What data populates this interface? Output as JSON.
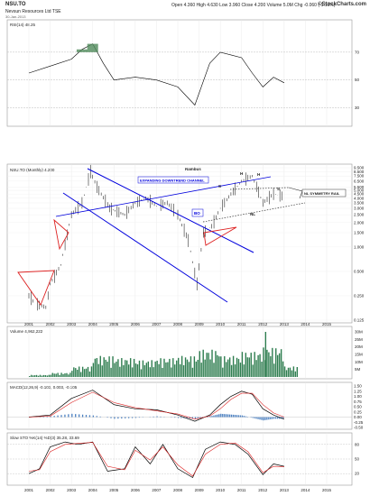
{
  "header": {
    "title": "NSU.TO",
    "company": "Nevsun Resources Ltd",
    "exchange": "TSE",
    "quote": "Open 4.360  High 4.630  Low 3.960  Close 4.200  Volume 5.0M  Chg -0.060 (-1.16%)",
    "date": "30-Jan-2013",
    "logo": "©StockCharts.com"
  },
  "rsi": {
    "label": "RSI(14) 48.25",
    "levels": [
      "70",
      "50",
      "30"
    ]
  },
  "price": {
    "label": "NSU.TO (Monthly) 4.200",
    "title": "Rambus",
    "annotations": {
      "channel": "EXPANDING DOWNTREND CHANNEL",
      "bo": "BO",
      "nl_rail": "NL SYMMETRY RAIL",
      "nl": "NL",
      "h1": "H",
      "h2": "H",
      "s1": "S",
      "s2": "S"
    },
    "y_ticks": [
      "9.500",
      "8.500",
      "7.500",
      "6.500",
      "5.500",
      "5.000",
      "4.500",
      "4.000",
      "3.500",
      "3.000",
      "2.500",
      "2.000",
      "1.500",
      "1.000",
      "0.500",
      "0.250",
      "0.125"
    ]
  },
  "volume": {
    "label": "Volume 4,962,222",
    "y_ticks": [
      "30M",
      "25M",
      "20M",
      "15M",
      "10M",
      "5M"
    ]
  },
  "macd": {
    "label": "MACD(12,26,9) -0.103, 0.003, -0.105",
    "y_ticks": [
      "1.50",
      "1.25",
      "1.00",
      "0.75",
      "0.50",
      "0.25",
      "0.00",
      "-0.25",
      "-0.50"
    ]
  },
  "sto": {
    "label": "Slow STO %K(14) %D(3) 35.28, 33.69",
    "y_ticks": [
      "80",
      "50",
      "20"
    ]
  },
  "x_axis": [
    "2001",
    "2002",
    "2003",
    "2004",
    "2005",
    "2006",
    "2007",
    "2008",
    "2009",
    "2010",
    "2011",
    "2012",
    "2013",
    "2014",
    "2015"
  ],
  "chart_data": [
    {
      "type": "line",
      "title": "RSI(14)",
      "x": [
        2001,
        2002,
        2003,
        2003.5,
        2004,
        2004.5,
        2005,
        2006,
        2007,
        2008,
        2008.8,
        2009.5,
        2010,
        2010.5,
        2011,
        2011.5,
        2012,
        2012.5,
        2013
      ],
      "y": [
        55,
        60,
        65,
        72,
        76,
        62,
        50,
        52,
        50,
        45,
        32,
        62,
        70,
        68,
        66,
        55,
        45,
        52,
        48
      ],
      "ylim": [
        20,
        90
      ]
    },
    {
      "type": "line",
      "title": "NSU.TO (Monthly)",
      "x": [
        2001,
        2001.3,
        2001.8,
        2002,
        2002.5,
        2003,
        2003.5,
        2003.9,
        2004.2,
        2004.8,
        2005.5,
        2006,
        2006.5,
        2007,
        2007.5,
        2008,
        2008.5,
        2008.9,
        2009.2,
        2009.6,
        2010,
        2010.5,
        2011,
        2011.5,
        2012,
        2012.5,
        2013
      ],
      "y": [
        0.25,
        0.2,
        0.18,
        0.35,
        0.6,
        2.5,
        3.5,
        8.5,
        5.5,
        3.0,
        2.5,
        3.5,
        4.0,
        3.2,
        3.5,
        2.5,
        1.2,
        0.35,
        1.5,
        1.8,
        3.0,
        4.5,
        6.5,
        7.5,
        3.5,
        4.5,
        4.2
      ],
      "scale": "log",
      "ylim": [
        0.125,
        9.5
      ]
    },
    {
      "type": "bar",
      "title": "Volume",
      "x": [
        2001,
        2002,
        2003,
        2004,
        2005,
        2006,
        2007,
        2008,
        2009,
        2010,
        2011,
        2012,
        2013
      ],
      "values": [
        1,
        2,
        5,
        10,
        9,
        8,
        9,
        10,
        13,
        10,
        12,
        14,
        5
      ],
      "ylabel": "Millions",
      "ylim": [
        0,
        30
      ]
    },
    {
      "type": "line",
      "title": "MACD(12,26,9)",
      "series": [
        {
          "name": "MACD",
          "x": [
            2001,
            2002,
            2003,
            2004,
            2005,
            2006,
            2007,
            2008,
            2008.8,
            2009.5,
            2010,
            2010.5,
            2011,
            2011.5,
            2012,
            2012.5,
            2013
          ],
          "values": [
            0,
            0.1,
            0.9,
            1.3,
            0.6,
            0.4,
            0.35,
            0.1,
            -0.2,
            0.1,
            0.6,
            1.0,
            1.25,
            1.1,
            0.4,
            0.1,
            -0.1
          ]
        },
        {
          "name": "Signal",
          "x": [
            2001,
            2002,
            2003,
            2004,
            2005,
            2006,
            2007,
            2008,
            2008.8,
            2009.5,
            2010,
            2010.5,
            2011,
            2011.5,
            2012,
            2012.5,
            2013
          ],
          "values": [
            0,
            0.05,
            0.7,
            1.2,
            0.7,
            0.45,
            0.3,
            0.15,
            -0.1,
            0.05,
            0.4,
            0.85,
            1.15,
            1.15,
            0.6,
            0.2,
            0.0
          ]
        }
      ],
      "ylim": [
        -0.5,
        1.5
      ]
    },
    {
      "type": "line",
      "title": "Slow STO",
      "series": [
        {
          "name": "%K",
          "x": [
            2001,
            2001.5,
            2002,
            2002.7,
            2003.3,
            2004,
            2004.7,
            2005.5,
            2006,
            2006.7,
            2007.3,
            2008,
            2008.7,
            2009.3,
            2010,
            2010.7,
            2011.3,
            2012,
            2012.5,
            2013
          ],
          "values": [
            20,
            30,
            75,
            85,
            80,
            85,
            25,
            30,
            75,
            40,
            80,
            30,
            12,
            70,
            85,
            80,
            60,
            18,
            40,
            35
          ]
        },
        {
          "name": "%D",
          "x": [
            2001,
            2001.5,
            2002,
            2002.7,
            2003.3,
            2004,
            2004.7,
            2005.5,
            2006,
            2006.7,
            2007.3,
            2008,
            2008.7,
            2009.3,
            2010,
            2010.7,
            2011.3,
            2012,
            2012.5,
            2013
          ],
          "values": [
            25,
            28,
            65,
            80,
            82,
            84,
            35,
            28,
            68,
            48,
            75,
            38,
            15,
            60,
            80,
            83,
            65,
            22,
            35,
            34
          ]
        }
      ],
      "ylim": [
        0,
        100
      ]
    }
  ],
  "colors": {
    "ma": "#2a8a4a",
    "blue_line": "#0000dd",
    "red": "#dd2222",
    "vol": "#2e7d4f"
  }
}
